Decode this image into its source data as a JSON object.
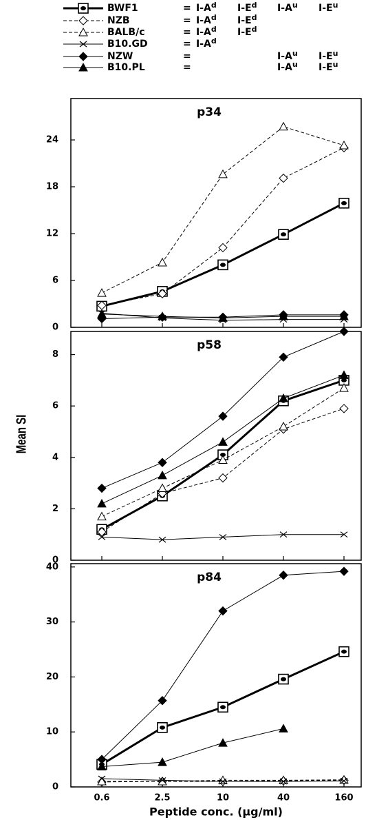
{
  "legend": {
    "separator": "=",
    "haplotypes": [
      [
        {
          "locus": "I-A",
          "allele": "d"
        },
        {
          "locus": "I-E",
          "allele": "d"
        },
        {
          "locus": "I-A",
          "allele": "u"
        },
        {
          "locus": "I-E",
          "allele": "u"
        }
      ],
      [
        {
          "locus": "I-A",
          "allele": "d"
        },
        {
          "locus": "I-E",
          "allele": "d"
        },
        null,
        null
      ],
      [
        {
          "locus": "I-A",
          "allele": "d"
        },
        {
          "locus": "I-E",
          "allele": "d"
        },
        null,
        null
      ],
      [
        {
          "locus": "I-A",
          "allele": "d"
        },
        null,
        null,
        null
      ],
      [
        null,
        null,
        {
          "locus": "I-A",
          "allele": "u"
        },
        {
          "locus": "I-E",
          "allele": "u"
        }
      ],
      [
        null,
        null,
        {
          "locus": "I-A",
          "allele": "u"
        },
        {
          "locus": "I-E",
          "allele": "u"
        }
      ]
    ]
  },
  "chart_data": [
    {
      "type": "line",
      "title": "p34",
      "ylim": [
        0,
        29.3
      ],
      "yticks": [
        0,
        6,
        12,
        18,
        24
      ],
      "series": [
        {
          "name": "BWF1",
          "color": "#000000",
          "marker": "square-dot",
          "dash": "solid",
          "width": 3,
          "values": [
            2.7,
            4.6,
            8.0,
            11.9,
            15.9
          ]
        },
        {
          "name": "NZB",
          "color": "#000000",
          "marker": "open-diamond",
          "dash": "dashed",
          "width": 1,
          "values": [
            2.8,
            4.3,
            10.2,
            19.1,
            23.0
          ]
        },
        {
          "name": "BALB/c",
          "color": "#000000",
          "marker": "open-triangle",
          "dash": "dashed",
          "width": 1,
          "values": [
            4.4,
            8.3,
            19.6,
            25.7,
            23.3
          ]
        },
        {
          "name": "B10.GD",
          "color": "#000000",
          "marker": "cross",
          "dash": "solid",
          "width": 1,
          "values": [
            1.8,
            1.2,
            0.9,
            1.0,
            1.0
          ]
        },
        {
          "name": "NZW",
          "color": "#000000",
          "marker": "filled-diamond",
          "dash": "solid",
          "width": 1,
          "values": [
            1.1,
            1.3,
            1.3,
            1.6,
            1.6
          ]
        },
        {
          "name": "B10.PL",
          "color": "#000000",
          "marker": "filled-triangle",
          "dash": "solid",
          "width": 1,
          "values": [
            1.7,
            1.4,
            1.2,
            1.4,
            1.4
          ]
        }
      ]
    },
    {
      "type": "line",
      "title": "p58",
      "ylabel": "Mean SI",
      "ylim": [
        0,
        8.9
      ],
      "yticks": [
        0,
        2,
        4,
        6,
        8
      ],
      "series": [
        {
          "values": [
            1.2,
            2.5,
            4.1,
            6.2,
            7.0
          ]
        },
        {
          "values": [
            1.1,
            2.6,
            3.2,
            5.1,
            5.9
          ]
        },
        {
          "values": [
            1.7,
            2.8,
            3.9,
            5.2,
            6.7
          ]
        },
        {
          "values": [
            0.9,
            0.8,
            0.9,
            1.0,
            1.0
          ]
        },
        {
          "values": [
            2.8,
            3.8,
            5.6,
            7.9,
            8.9
          ]
        },
        {
          "values": [
            2.2,
            3.3,
            4.6,
            6.3,
            7.2
          ]
        }
      ]
    },
    {
      "type": "line",
      "title": "p84",
      "xlabel": "Peptide conc. (µg/ml)",
      "categories": [
        "0.6",
        "2.5",
        "10",
        "40",
        "160"
      ],
      "ylim": [
        0,
        40.6
      ],
      "yticks": [
        0,
        10,
        20,
        30,
        40
      ],
      "series": [
        {
          "values": [
            4.1,
            10.8,
            14.5,
            19.6,
            24.6
          ]
        },
        {
          "values": [
            0.9,
            1.0,
            1.0,
            1.1,
            1.2
          ]
        },
        {
          "values": [
            1.0,
            1.0,
            1.2,
            1.2,
            1.3
          ]
        },
        {
          "values": [
            1.5,
            1.2,
            1.0,
            1.0,
            1.1
          ]
        },
        {
          "values": [
            5.0,
            15.7,
            32.0,
            38.5,
            39.2
          ]
        },
        {
          "values": [
            3.7,
            4.5,
            8.0,
            10.6,
            null
          ]
        }
      ]
    }
  ]
}
